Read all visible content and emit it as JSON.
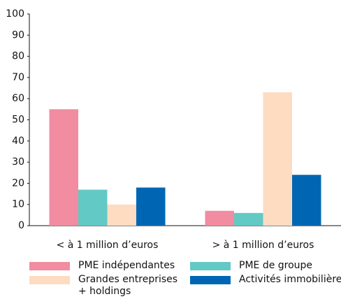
{
  "chart_data": {
    "type": "bar",
    "categories": [
      "< à 1 million d’euros",
      "> à 1 million d’euros"
    ],
    "series": [
      {
        "name": "PME indépendantes",
        "color": "#f28ca0",
        "values": [
          55,
          7
        ]
      },
      {
        "name": "PME de groupe",
        "color": "#63c9c4",
        "values": [
          17,
          6
        ]
      },
      {
        "name": "Grandes entreprises + holdings",
        "color": "#fddcc2",
        "values": [
          10,
          63
        ]
      },
      {
        "name": "Activités immobilières",
        "color": "#0066b3",
        "values": [
          18,
          24
        ]
      }
    ],
    "ylim": [
      0,
      100
    ],
    "yticks": [
      0,
      10,
      20,
      30,
      40,
      50,
      60,
      70,
      80,
      90,
      100
    ],
    "grid": false
  }
}
